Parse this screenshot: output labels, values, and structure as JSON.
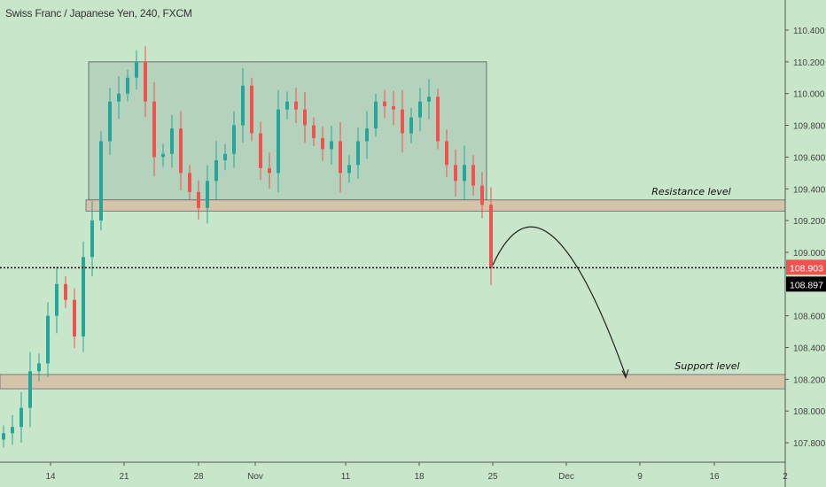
{
  "header": {
    "title": "Swiss Franc / Japanese Yen, 240, FXCM"
  },
  "colors": {
    "background": "#c8e6c9",
    "up": "#26a69a",
    "down": "#ef5350",
    "box": "#a9c4b5",
    "zone": "#d5c0a6"
  },
  "annotations": {
    "resistance_label": "Resistance level",
    "support_label": "Support level"
  },
  "price_tags": {
    "last": "108.903",
    "crosshair": "108.897"
  },
  "chart_data": {
    "type": "candlestick",
    "title": "Swiss Franc / Japanese Yen, 240, FXCM",
    "ylim": [
      107.7,
      110.5
    ],
    "y_ticks": [
      "110.400",
      "110.200",
      "110.000",
      "109.800",
      "109.600",
      "109.400",
      "109.200",
      "109.000",
      "108.600",
      "108.400",
      "108.200",
      "108.000",
      "107.800"
    ],
    "x_ticks": [
      "14",
      "21",
      "28",
      "Nov",
      "11",
      "18",
      "25",
      "Dec",
      "9",
      "16",
      "2"
    ],
    "closes": [
      107.86,
      107.9,
      108.02,
      108.25,
      108.3,
      108.6,
      108.8,
      108.7,
      108.47,
      108.97,
      109.2,
      109.7,
      109.95,
      110.0,
      110.1,
      110.2,
      109.95,
      109.6,
      109.62,
      109.78,
      109.5,
      109.38,
      109.28,
      109.45,
      109.58,
      109.62,
      109.8,
      110.05,
      109.75,
      109.53,
      109.5,
      109.9,
      109.95,
      109.9,
      109.8,
      109.72,
      109.65,
      109.7,
      109.5,
      109.55,
      109.7,
      109.78,
      109.95,
      109.92,
      109.9,
      109.75,
      109.85,
      109.95,
      109.98,
      109.7,
      109.55,
      109.45,
      109.55,
      109.42,
      109.3,
      108.903
    ],
    "range_box": {
      "top": 110.2,
      "bottom": 109.33
    },
    "resistance_zone": {
      "top": 109.33,
      "bottom": 109.26
    },
    "support_zone": {
      "top": 108.23,
      "bottom": 108.14
    },
    "last_price": 108.903,
    "projection": {
      "peak": 109.3,
      "target": 108.2
    }
  }
}
